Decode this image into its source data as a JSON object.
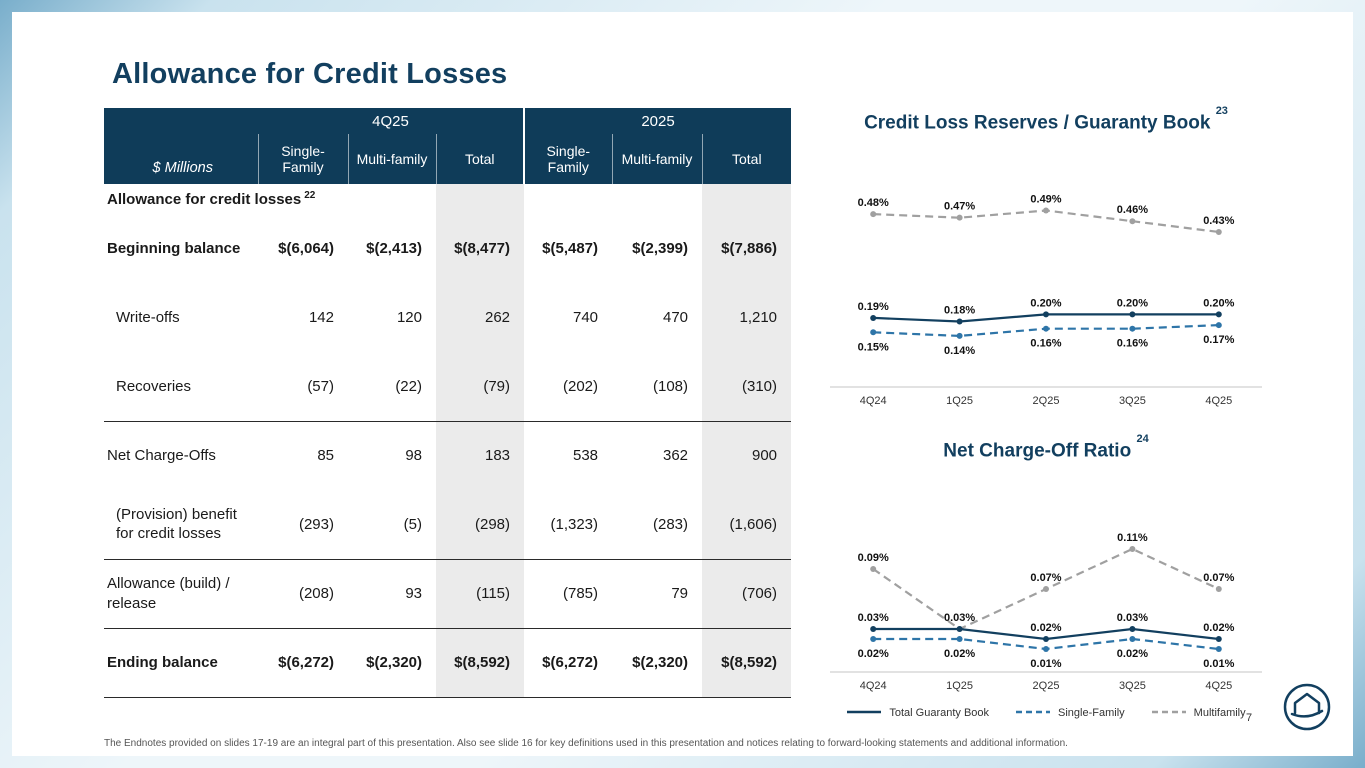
{
  "page": {
    "title": "Allowance for Credit Losses",
    "page_number": "7",
    "footer": "The Endnotes provided on slides 17-19 are an integral part of this presentation. Also see slide 16 for key definitions used in this presentation and notices relating to forward-looking statements and additional information."
  },
  "colors": {
    "header_bg": "#0f3c59",
    "title": "#123f5f",
    "total_col_bg": "#ebebeb",
    "navy_line": "#123f5f",
    "blue_line": "#2e75a8",
    "gray_line": "#a0a0a0"
  },
  "table": {
    "unit_label": "$ Millions",
    "col_groups": [
      "4Q25",
      "2025"
    ],
    "col_headers": [
      "Single-Family",
      "Multi-family",
      "Total",
      "Single-Family",
      "Multi-family",
      "Total"
    ],
    "section_label": "Allowance for credit losses",
    "section_superscript": "22",
    "rows": [
      {
        "label": "Beginning balance",
        "values": [
          "$(6,064)",
          "$(2,413)",
          "$(8,477)",
          "$(5,487)",
          "$(2,399)",
          "$(7,886)"
        ]
      },
      {
        "label": "Write-offs",
        "values": [
          "142",
          "120",
          "262",
          "740",
          "470",
          "1,210"
        ]
      },
      {
        "label": "Recoveries",
        "values": [
          "(57)",
          "(22)",
          "(79)",
          "(202)",
          "(108)",
          "(310)"
        ]
      },
      {
        "label": "Net Charge-Offs",
        "values": [
          "85",
          "98",
          "183",
          "538",
          "362",
          "900"
        ]
      },
      {
        "label": "(Provision) benefit for credit losses",
        "values": [
          "(293)",
          "(5)",
          "(298)",
          "(1,323)",
          "(283)",
          "(1,606)"
        ]
      },
      {
        "label": "Allowance (build) / release",
        "values": [
          "(208)",
          "93",
          "(115)",
          "(785)",
          "79",
          "(706)"
        ]
      },
      {
        "label": "Ending balance",
        "values": [
          "$(6,272)",
          "$(2,320)",
          "$(8,592)",
          "$(6,272)",
          "$(2,320)",
          "$(8,592)"
        ]
      }
    ]
  },
  "chart_data": [
    {
      "type": "line",
      "title": "Credit Loss Reserves / Guaranty Book",
      "title_superscript": "23",
      "categories": [
        "4Q24",
        "1Q25",
        "2Q25",
        "3Q25",
        "4Q25"
      ],
      "xlabel": "",
      "ylabel": "",
      "unit": "%",
      "ylim": [
        0,
        0.55
      ],
      "grid": false,
      "legend_position": "shared-bottom",
      "series": [
        {
          "name": "Multifamily",
          "dash": "dashed",
          "color": "#a0a0a0",
          "label_pos": "above",
          "values": [
            0.48,
            0.47,
            0.49,
            0.46,
            0.43
          ]
        },
        {
          "name": "Total Guaranty Book",
          "dash": "solid",
          "color": "#123f5f",
          "label_pos": "above",
          "values": [
            0.19,
            0.18,
            0.2,
            0.2,
            0.2
          ]
        },
        {
          "name": "Single-Family",
          "dash": "dashed",
          "color": "#2e75a8",
          "label_pos": "below",
          "values": [
            0.15,
            0.14,
            0.16,
            0.16,
            0.17
          ]
        }
      ]
    },
    {
      "type": "line",
      "title": "Net Charge-Off Ratio",
      "title_superscript": "24",
      "categories": [
        "4Q24",
        "1Q25",
        "2Q25",
        "3Q25",
        "4Q25"
      ],
      "xlabel": "",
      "ylabel": "",
      "unit": "%",
      "ylim": [
        0,
        0.13
      ],
      "grid": false,
      "legend_position": "shared-bottom",
      "series": [
        {
          "name": "Multifamily",
          "dash": "dashed",
          "color": "#a0a0a0",
          "label_pos": "above",
          "values": [
            0.09,
            0.03,
            0.07,
            0.11,
            0.07
          ]
        },
        {
          "name": "Total Guaranty Book",
          "dash": "solid",
          "color": "#123f5f",
          "label_pos": "above",
          "values": [
            0.03,
            0.03,
            0.02,
            0.03,
            0.02
          ]
        },
        {
          "name": "Single-Family",
          "dash": "dashed",
          "color": "#2e75a8",
          "label_pos": "below",
          "values": [
            0.02,
            0.02,
            0.01,
            0.02,
            0.01
          ]
        }
      ]
    }
  ],
  "legend": {
    "items": [
      {
        "label": "Total Guaranty Book",
        "dash": "solid",
        "color": "#123f5f"
      },
      {
        "label": "Single-Family",
        "dash": "dashed",
        "color": "#2e75a8"
      },
      {
        "label": "Multifamily",
        "dash": "dashed",
        "color": "#a0a0a0"
      }
    ]
  }
}
